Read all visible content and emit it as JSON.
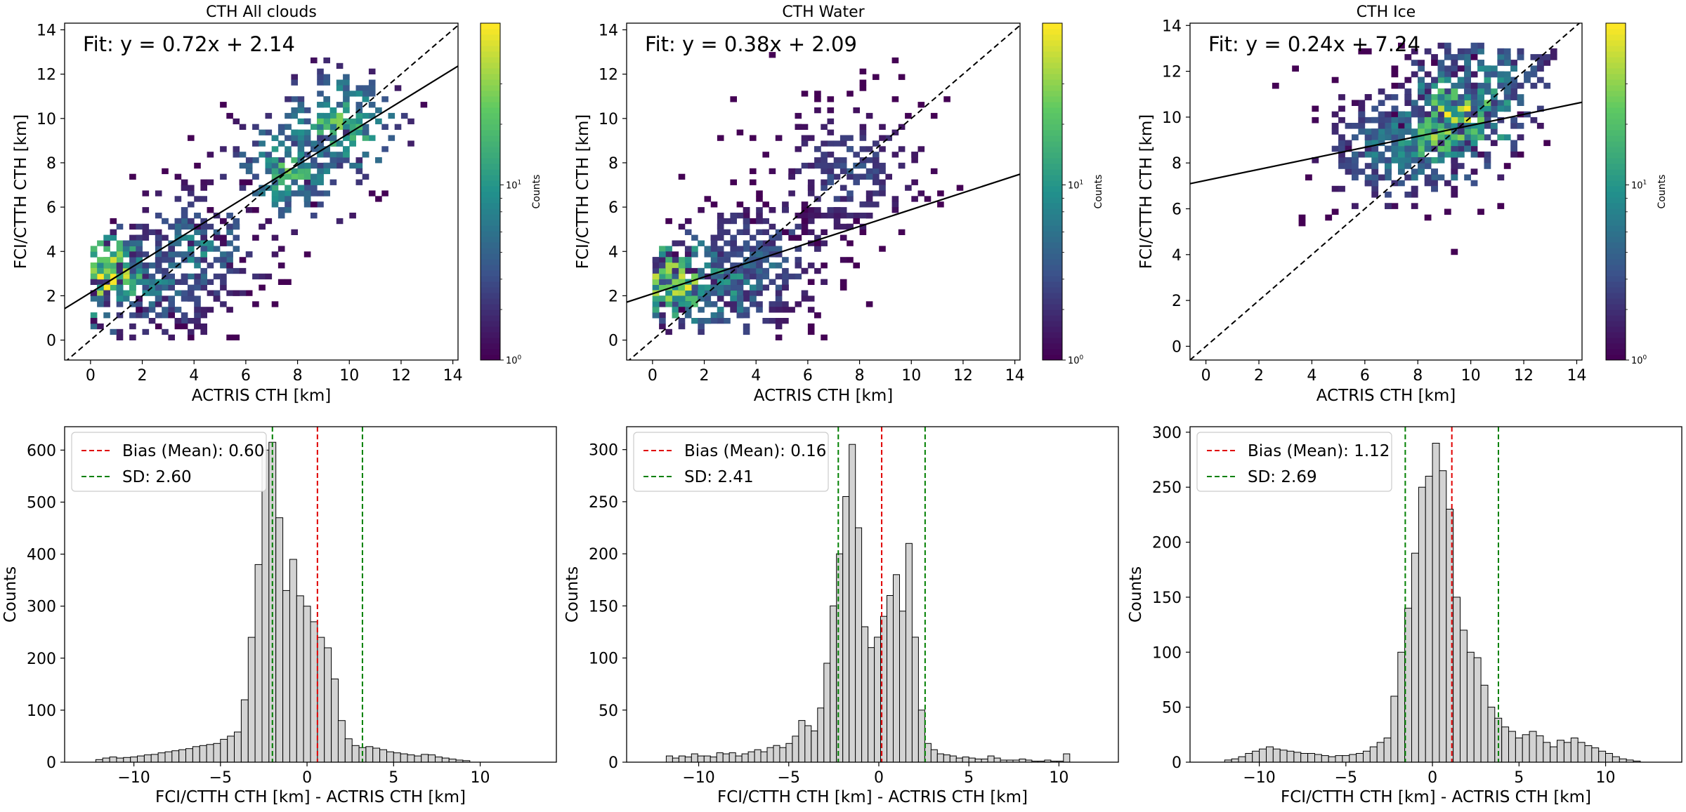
{
  "figure": {
    "colorbar": {
      "label": "Counts",
      "tick_labels": [
        "10^0",
        "10^1"
      ],
      "scale": "log",
      "colormap": "viridis",
      "colors": [
        "#440154",
        "#3b528b",
        "#21918c",
        "#5ec962",
        "#fde725"
      ]
    },
    "fit_line_color": "#000000",
    "identity_line_style": "dashed black"
  },
  "chart_data": [
    {
      "type": "heatmap",
      "title": "CTH All clouds",
      "xlabel": "ACTRIS CTH [km]",
      "ylabel": "FCI/CTTH CTH [km]",
      "xlim": [
        -1,
        14.2
      ],
      "ylim": [
        -0.9,
        14.3
      ],
      "xticks": [
        "0",
        "2",
        "4",
        "6",
        "8",
        "10",
        "12",
        "14"
      ],
      "yticks": [
        "0",
        "2",
        "4",
        "6",
        "8",
        "10",
        "12",
        "14"
      ],
      "fit": {
        "label": "Fit: y = 0.72x + 2.14",
        "slope": 0.72,
        "intercept": 2.14
      },
      "colorbar_ticks": [
        "10^0",
        "10^1"
      ],
      "density_clusters": [
        {
          "x": 0.6,
          "y": 2.8,
          "weight": 1.0
        },
        {
          "x": 7.5,
          "y": 7.5,
          "weight": 0.7
        },
        {
          "x": 9.5,
          "y": 9.5,
          "weight": 0.8
        },
        {
          "x": 4.0,
          "y": 4.0,
          "weight": 0.5
        },
        {
          "x": 2.5,
          "y": 2.5,
          "weight": 0.45
        }
      ],
      "seed": 11
    },
    {
      "type": "heatmap",
      "title": "CTH Water",
      "xlabel": "ACTRIS CTH [km]",
      "ylabel": "FCI/CTTH CTH [km]",
      "xlim": [
        -1,
        14.2
      ],
      "ylim": [
        -0.9,
        14.3
      ],
      "xticks": [
        "0",
        "2",
        "4",
        "6",
        "8",
        "10",
        "12",
        "14"
      ],
      "yticks": [
        "0",
        "2",
        "4",
        "6",
        "8",
        "10",
        "12",
        "14"
      ],
      "fit": {
        "label": "Fit: y = 0.38x + 2.09",
        "slope": 0.38,
        "intercept": 2.09
      },
      "colorbar_ticks": [
        "10^0",
        "10^1"
      ],
      "density_clusters": [
        {
          "x": 0.7,
          "y": 2.5,
          "weight": 1.0
        },
        {
          "x": 2.5,
          "y": 2.5,
          "weight": 0.6
        },
        {
          "x": 4.0,
          "y": 3.5,
          "weight": 0.4
        },
        {
          "x": 7.5,
          "y": 7.5,
          "weight": 0.3
        }
      ],
      "seed": 23
    },
    {
      "type": "heatmap",
      "title": "CTH Ice",
      "xlabel": "ACTRIS CTH [km]",
      "ylabel": "FCI/CTTH CTH [km]",
      "xlim": [
        -0.6,
        14.2
      ],
      "ylim": [
        -0.6,
        14.1
      ],
      "xticks": [
        "0",
        "2",
        "4",
        "6",
        "8",
        "10",
        "12",
        "14"
      ],
      "yticks": [
        "0",
        "2",
        "4",
        "6",
        "8",
        "10",
        "12",
        "14"
      ],
      "fit": {
        "label": "Fit: y = 0.24x + 7.24",
        "slope": 0.24,
        "intercept": 7.24
      },
      "colorbar_ticks": [
        "10^0",
        "10^1"
      ],
      "density_clusters": [
        {
          "x": 9.5,
          "y": 10.0,
          "weight": 1.0
        },
        {
          "x": 8.5,
          "y": 9.0,
          "weight": 0.8
        },
        {
          "x": 7.0,
          "y": 8.5,
          "weight": 0.5
        },
        {
          "x": 10.5,
          "y": 11.5,
          "weight": 0.5
        }
      ],
      "seed": 37
    },
    {
      "type": "bar",
      "subtype": "histogram",
      "xlabel": "FCI/CTTH CTH [km] - ACTRIS CTH [km]",
      "ylabel": "Counts",
      "xlim": [
        -14,
        14.4
      ],
      "ylim": [
        0,
        645
      ],
      "xticks": [
        -10,
        -5,
        0,
        5,
        10
      ],
      "xtick_labels": [
        "−10",
        "−5",
        "0",
        "5",
        "10"
      ],
      "yticks": [
        0,
        100,
        200,
        300,
        400,
        500,
        600
      ],
      "bias": {
        "label": "Bias (Mean): 0.60",
        "value": 0.6
      },
      "sd": {
        "label": "SD: 2.60",
        "value": 2.6
      },
      "bin_start": -12.2,
      "bin_width": 0.4,
      "values": [
        5,
        8,
        10,
        8,
        9,
        10,
        12,
        14,
        15,
        18,
        20,
        22,
        24,
        26,
        30,
        32,
        34,
        36,
        44,
        50,
        58,
        120,
        240,
        380,
        600,
        615,
        470,
        330,
        390,
        320,
        300,
        270,
        240,
        220,
        160,
        80,
        45,
        32,
        28,
        30,
        27,
        24,
        20,
        18,
        16,
        14,
        12,
        15,
        14,
        10,
        8,
        6,
        4,
        3
      ]
    },
    {
      "type": "bar",
      "subtype": "histogram",
      "xlabel": "FCI/CTTH CTH [km] - ACTRIS CTH [km]",
      "ylabel": "Counts",
      "xlim": [
        -14,
        13.3
      ],
      "ylim": [
        0,
        322
      ],
      "xticks": [
        -10,
        -5,
        0,
        5,
        10
      ],
      "xtick_labels": [
        "−10",
        "−5",
        "0",
        "5",
        "10"
      ],
      "yticks": [
        0,
        50,
        100,
        150,
        200,
        250,
        300
      ],
      "bias": {
        "label": "Bias (Mean): 0.16",
        "value": 0.16
      },
      "sd": {
        "label": "SD: 2.41",
        "value": 2.41
      },
      "bin_start": -11.8,
      "bin_width": 0.35,
      "values": [
        6,
        4,
        6,
        5,
        8,
        6,
        6,
        5,
        9,
        8,
        9,
        6,
        8,
        10,
        12,
        10,
        14,
        16,
        14,
        18,
        25,
        40,
        35,
        30,
        52,
        95,
        150,
        200,
        255,
        305,
        225,
        130,
        110,
        120,
        140,
        160,
        180,
        145,
        210,
        120,
        50,
        18,
        12,
        8,
        7,
        6,
        4,
        5,
        4,
        3,
        3,
        6,
        4,
        2,
        2,
        2,
        3,
        2,
        1,
        1,
        2,
        1,
        1,
        8
      ]
    },
    {
      "type": "bar",
      "subtype": "histogram",
      "xlabel": "FCI/CTTH CTH [km] - ACTRIS CTH [km]",
      "ylabel": "Counts",
      "xlim": [
        -14,
        14.4
      ],
      "ylim": [
        0,
        305
      ],
      "xticks": [
        -10,
        -5,
        0,
        5,
        10
      ],
      "xtick_labels": [
        "−10",
        "−5",
        "0",
        "5",
        "10"
      ],
      "yticks": [
        0,
        50,
        100,
        150,
        200,
        250,
        300
      ],
      "bias": {
        "label": "Bias (Mean): 1.12",
        "value": 1.12
      },
      "sd": {
        "label": "SD: 2.69",
        "value": 2.69
      },
      "bin_start": -12.0,
      "bin_width": 0.4,
      "values": [
        2,
        3,
        5,
        8,
        10,
        12,
        14,
        12,
        11,
        10,
        9,
        8,
        8,
        7,
        6,
        5,
        6,
        6,
        7,
        8,
        10,
        14,
        18,
        22,
        60,
        100,
        140,
        190,
        250,
        260,
        290,
        265,
        230,
        150,
        120,
        100,
        95,
        70,
        50,
        40,
        32,
        28,
        22,
        25,
        28,
        24,
        18,
        14,
        20,
        18,
        22,
        18,
        15,
        13,
        10,
        8,
        5,
        3,
        2,
        1
      ]
    }
  ]
}
